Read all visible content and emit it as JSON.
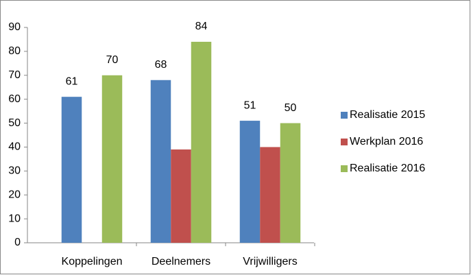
{
  "chart_data": {
    "type": "bar",
    "categories": [
      "Koppelingen",
      "Deelnemers",
      "Vrijwilligers"
    ],
    "series": [
      {
        "name": "Realisatie 2015",
        "color": "#4f81bd",
        "values": [
          61,
          68,
          51
        ],
        "data_labels": true
      },
      {
        "name": "Werkplan 2016",
        "color": "#c0504d",
        "values": [
          null,
          39,
          40
        ],
        "data_labels": false
      },
      {
        "name": "Realisatie 2016",
        "color": "#9bbb59",
        "values": [
          70,
          84,
          50
        ],
        "data_labels": true
      }
    ],
    "ylim": [
      0,
      90
    ],
    "yticks": [
      0,
      10,
      20,
      30,
      40,
      50,
      60,
      70,
      80,
      90
    ],
    "grid": false,
    "legend": "right"
  }
}
